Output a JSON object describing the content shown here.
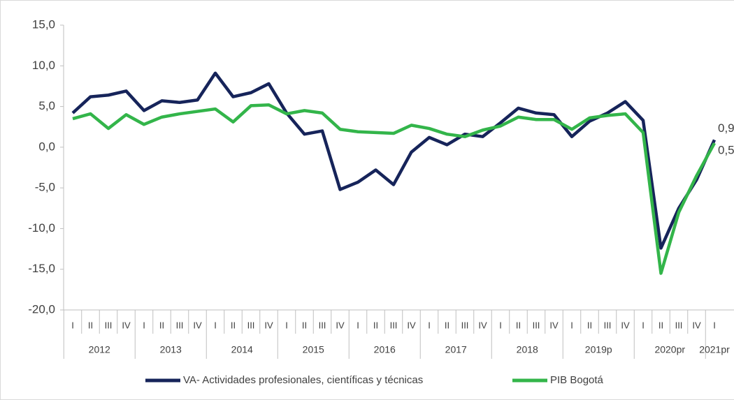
{
  "chart_data": {
    "type": "line",
    "categories": [
      "I",
      "II",
      "III",
      "IV",
      "I",
      "II",
      "III",
      "IV",
      "I",
      "II",
      "III",
      "IV",
      "I",
      "II",
      "III",
      "IV",
      "I",
      "II",
      "III",
      "IV",
      "I",
      "II",
      "III",
      "IV",
      "I",
      "II",
      "III",
      "IV",
      "I",
      "II",
      "III",
      "IV",
      "I",
      "II",
      "III",
      "IV",
      "I"
    ],
    "category_groups": [
      "2012",
      "2013",
      "2014",
      "2015",
      "2016",
      "2017",
      "2018",
      "2019p",
      "2020pr",
      "2021pr"
    ],
    "series": [
      {
        "name": "VA- Actividades profesionales, científicas y técnicas",
        "color": "#16245a",
        "values": [
          4.2,
          6.2,
          6.4,
          6.9,
          4.5,
          5.7,
          5.5,
          5.8,
          9.1,
          6.2,
          6.7,
          7.8,
          4.2,
          1.6,
          2.0,
          -5.2,
          -4.3,
          -2.8,
          -4.6,
          -0.6,
          1.2,
          0.3,
          1.6,
          1.3,
          3.0,
          4.8,
          4.2,
          4.0,
          1.3,
          3.2,
          4.2,
          5.6,
          3.3,
          -12.4,
          -7.5,
          -4.0,
          0.9
        ],
        "value_labels": [
          null,
          null,
          null,
          null,
          null,
          null,
          null,
          null,
          null,
          null,
          null,
          null,
          null,
          null,
          null,
          null,
          null,
          null,
          null,
          null,
          null,
          null,
          null,
          null,
          null,
          null,
          null,
          null,
          null,
          null,
          null,
          null,
          null,
          null,
          null,
          null,
          "0,9"
        ]
      },
      {
        "name": "PIB Bogotá",
        "color": "#33b54a",
        "values": [
          3.5,
          4.1,
          2.3,
          4.0,
          2.8,
          3.7,
          4.1,
          4.4,
          4.7,
          3.1,
          5.1,
          5.2,
          4.1,
          4.5,
          4.2,
          2.2,
          1.9,
          1.8,
          1.7,
          2.7,
          2.3,
          1.6,
          1.3,
          2.1,
          2.6,
          3.7,
          3.4,
          3.4,
          2.2,
          3.6,
          3.9,
          4.1,
          1.8,
          -15.5,
          -8.0,
          -3.5,
          0.5
        ],
        "value_labels": [
          null,
          null,
          null,
          null,
          null,
          null,
          null,
          null,
          null,
          null,
          null,
          null,
          null,
          null,
          null,
          null,
          null,
          null,
          null,
          null,
          null,
          null,
          null,
          null,
          null,
          null,
          null,
          null,
          null,
          null,
          null,
          null,
          null,
          null,
          null,
          null,
          "0,5"
        ]
      }
    ],
    "ylim": [
      -20,
      15
    ],
    "yticks": [
      {
        "value": -20,
        "label": "-20,0"
      },
      {
        "value": -15,
        "label": "-15,0"
      },
      {
        "value": -10,
        "label": "-10,0"
      },
      {
        "value": -5,
        "label": "-5,0"
      },
      {
        "value": 0,
        "label": "0,0"
      },
      {
        "value": 5,
        "label": "5,0"
      },
      {
        "value": 10,
        "label": "10,0"
      },
      {
        "value": 15,
        "label": "15,0"
      }
    ],
    "grid": false,
    "legend": "bottom"
  }
}
